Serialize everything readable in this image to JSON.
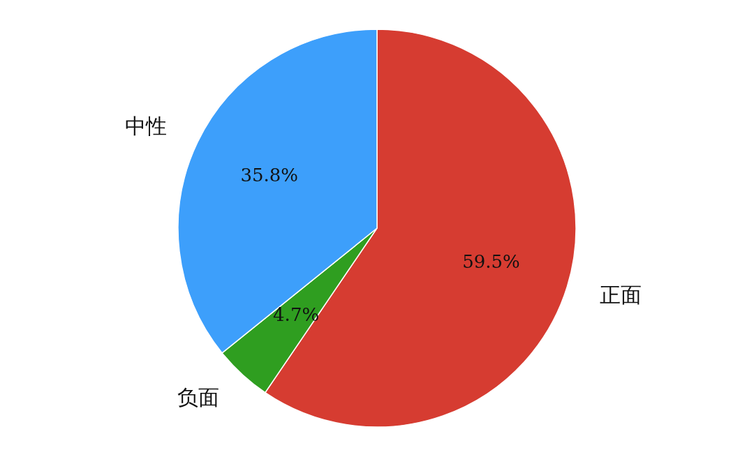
{
  "chart_data": {
    "type": "pie",
    "categories": [
      "正面",
      "负面",
      "中性"
    ],
    "values": [
      59.5,
      4.7,
      35.8
    ],
    "colors": [
      "#d63c31",
      "#2f9e20",
      "#3d9ffb"
    ],
    "value_labels": [
      "59.5%",
      "4.7%",
      "35.8%"
    ]
  }
}
